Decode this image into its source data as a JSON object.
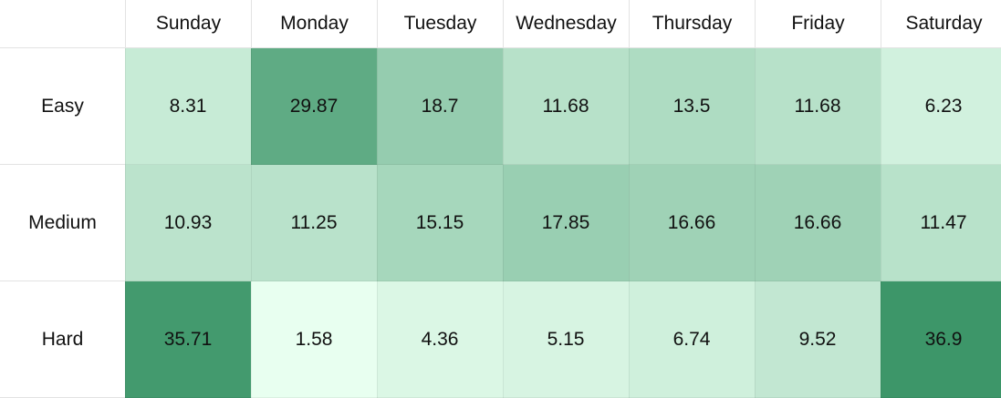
{
  "chart_data": {
    "type": "heatmap",
    "title": "",
    "columns": [
      "Sunday",
      "Monday",
      "Tuesday",
      "Wednesday",
      "Thursday",
      "Friday",
      "Saturday"
    ],
    "rows": [
      "Easy",
      "Medium",
      "Hard"
    ],
    "values": [
      [
        8.31,
        29.87,
        18.7,
        11.68,
        13.5,
        11.68,
        6.23
      ],
      [
        10.93,
        11.25,
        15.15,
        17.85,
        16.66,
        16.66,
        11.47
      ],
      [
        35.71,
        1.58,
        4.36,
        5.15,
        6.74,
        9.52,
        36.9
      ]
    ],
    "color_scale": {
      "low": "#e8fff0",
      "high": "#3d9669"
    },
    "value_range": [
      1.58,
      36.9
    ]
  }
}
